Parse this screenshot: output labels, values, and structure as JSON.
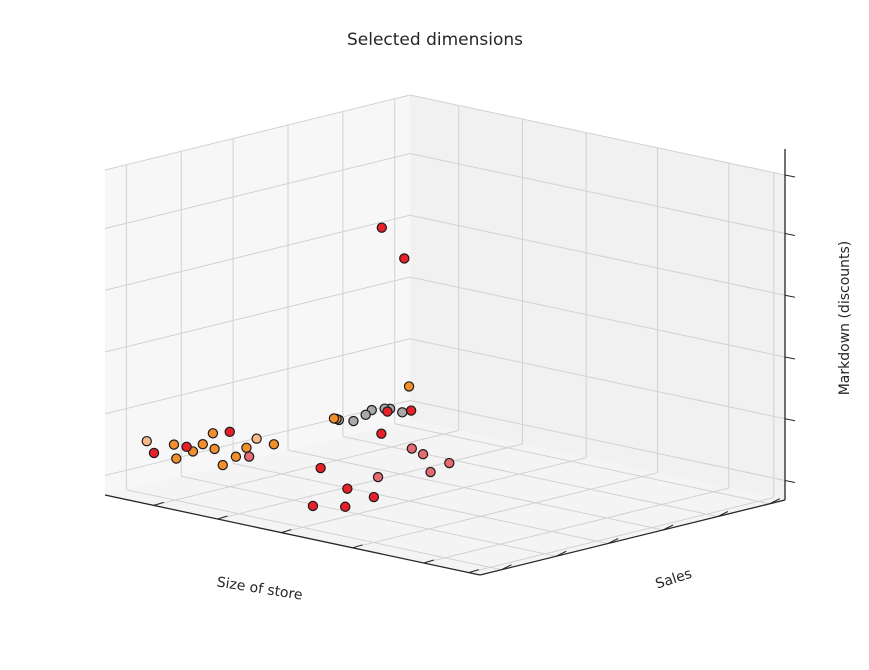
{
  "chart_data": {
    "type": "scatter",
    "title": "Selected dimensions",
    "xlabel": "Size of store",
    "ylabel": "Sales",
    "zlabel": "Markdown (discounts)",
    "projection": "3d",
    "grid": true,
    "tick_labels": "none",
    "colors": {
      "red": "#e8202a",
      "orange": "#f28e2b",
      "peach": "#f6b98a",
      "pink": "#e56b73",
      "gray": "#a8a8a8"
    },
    "series": [
      {
        "group": "red",
        "points": [
          {
            "x": 0.07,
            "y": 0.06,
            "z": 0.06
          },
          {
            "x": 0.16,
            "y": 0.07,
            "z": 0.08
          },
          {
            "x": 0.88,
            "y": 0.12,
            "z": 0.15
          },
          {
            "x": 0.95,
            "y": 0.09,
            "z": 0.14
          },
          {
            "x": 0.8,
            "y": 0.17,
            "z": 0.19
          },
          {
            "x": 0.93,
            "y": 0.66,
            "z": 0.14
          },
          {
            "x": 0.92,
            "y": 0.51,
            "z": 0.19
          },
          {
            "x": 0.97,
            "y": 0.53,
            "z": 0.09
          },
          {
            "x": 0.95,
            "y": 0.6,
            "z": 0.1
          },
          {
            "x": 0.98,
            "y": 0.63,
            "z": 0.17
          },
          {
            "x": 0.93,
            "y": 0.68,
            "z": 0.34
          },
          {
            "x": 0.99,
            "y": 0.73,
            "z": 1.0
          },
          {
            "x": 0.99,
            "y": 0.79,
            "z": 0.92
          }
        ]
      },
      {
        "group": "orange",
        "points": [
          {
            "x": 0.04,
            "y": 0.03,
            "z": 0.12
          },
          {
            "x": 0.29,
            "y": 0.04,
            "z": 0.08
          },
          {
            "x": 0.36,
            "y": 0.09,
            "z": 0.11
          },
          {
            "x": 0.52,
            "y": 0.06,
            "z": 0.06
          },
          {
            "x": 0.61,
            "y": 0.06,
            "z": 0.07
          },
          {
            "x": 0.62,
            "y": 0.04,
            "z": 0.04
          },
          {
            "x": 0.69,
            "y": 0.04,
            "z": 0.08
          },
          {
            "x": 0.7,
            "y": 0.07,
            "z": 0.04
          },
          {
            "x": 0.72,
            "y": 0.06,
            "z": 0.14
          },
          {
            "x": 0.79,
            "y": 0.09,
            "z": 0.13
          },
          {
            "x": 0.81,
            "y": 0.08,
            "z": 0.11
          },
          {
            "x": 0.84,
            "y": 0.06,
            "z": 0.09
          },
          {
            "x": 0.86,
            "y": 0.07,
            "z": 0.14
          }
        ]
      },
      {
        "group": "peach",
        "points": [
          {
            "x": 0.9,
            "y": 0.03,
            "z": 0.15
          },
          {
            "x": 0.97,
            "y": 0.38,
            "z": 0.26
          }
        ]
      },
      {
        "group": "pink",
        "points": [
          {
            "x": 0.97,
            "y": 0.36,
            "z": 0.2
          },
          {
            "x": 0.99,
            "y": 0.81,
            "z": 0.34
          },
          {
            "x": 0.99,
            "y": 0.91,
            "z": 0.32
          },
          {
            "x": 0.99,
            "y": 0.86,
            "z": 0.28
          },
          {
            "x": 0.99,
            "y": 0.72,
            "z": 0.23
          },
          {
            "x": 0.99,
            "y": 0.84,
            "z": 0.33
          }
        ]
      },
      {
        "group": "gray",
        "points": [
          {
            "x": 0.05,
            "y": 0.02,
            "z": 0.04
          },
          {
            "x": 0.09,
            "y": 0.02,
            "z": 0.06
          },
          {
            "x": 0.12,
            "y": 0.03,
            "z": 0.07
          },
          {
            "x": 0.15,
            "y": 0.02,
            "z": 0.07
          },
          {
            "x": 0.17,
            "y": 0.02,
            "z": 0.06
          },
          {
            "x": 0.21,
            "y": 0.02,
            "z": 0.05
          },
          {
            "x": 0.27,
            "y": 0.03,
            "z": 0.07
          }
        ]
      }
    ]
  }
}
